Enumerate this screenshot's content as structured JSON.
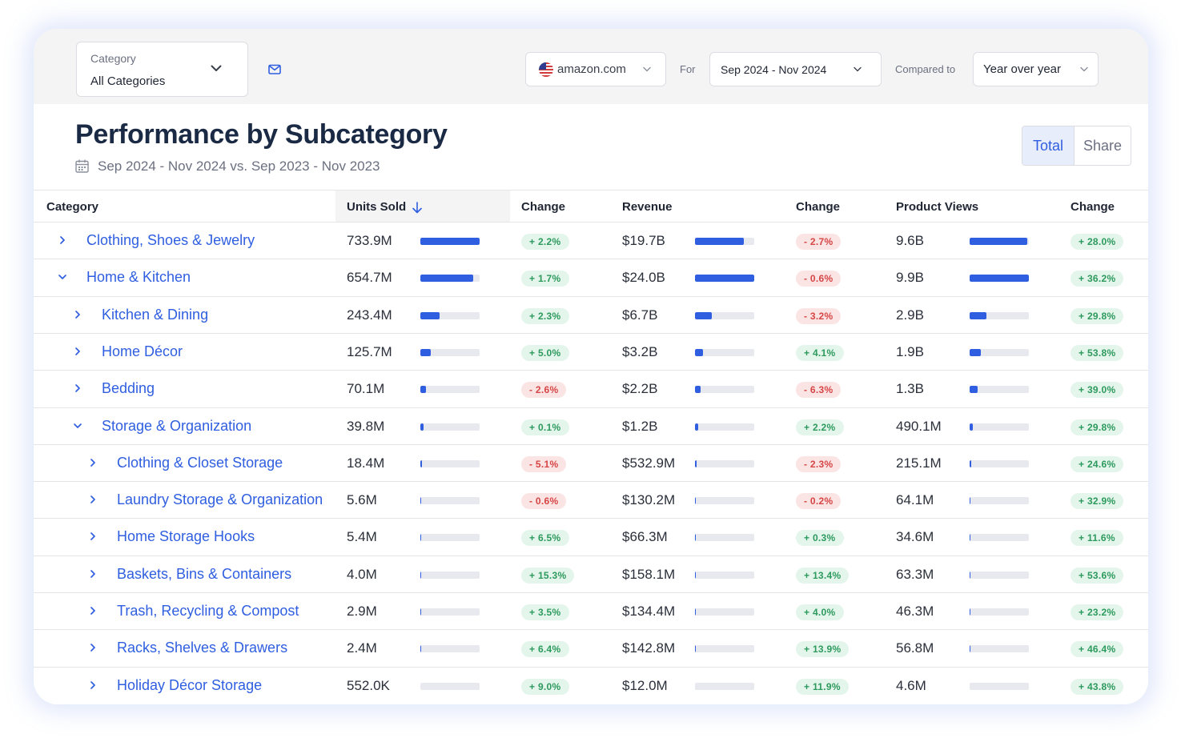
{
  "filters": {
    "category_label": "Category",
    "category_value": "All Categories",
    "marketplace": "amazon.com",
    "for_label": "For",
    "date_range": "Sep 2024 - Nov 2024",
    "compared_label": "Compared to",
    "comparison": "Year over year"
  },
  "header": {
    "title": "Performance by Subcategory",
    "subtitle": "Sep 2024 - Nov 2024 vs. Sep 2023 - Nov 2023",
    "toggle_total": "Total",
    "toggle_share": "Share"
  },
  "table": {
    "columns": {
      "category": "Category",
      "units_sold": "Units Sold",
      "units_change": "Change",
      "revenue": "Revenue",
      "revenue_change": "Change",
      "product_views": "Product Views",
      "views_change": "Change"
    },
    "rows": [
      {
        "level": 0,
        "expanded": false,
        "category": "Clothing, Shoes & Jewelry",
        "units": "733.9M",
        "units_share": 1.0,
        "units_change": "+ 2.2%",
        "revenue": "$19.7B",
        "revenue_share": 0.82,
        "revenue_change": "- 2.7%",
        "views": "9.6B",
        "views_share": 0.97,
        "views_change": "+ 28.0%"
      },
      {
        "level": 0,
        "expanded": true,
        "category": "Home & Kitchen",
        "units": "654.7M",
        "units_share": 0.89,
        "units_change": "+ 1.7%",
        "revenue": "$24.0B",
        "revenue_share": 1.0,
        "revenue_change": "- 0.6%",
        "views": "9.9B",
        "views_share": 1.0,
        "views_change": "+ 36.2%"
      },
      {
        "level": 1,
        "expanded": false,
        "category": "Kitchen & Dining",
        "units": "243.4M",
        "units_share": 0.33,
        "units_change": "+ 2.3%",
        "revenue": "$6.7B",
        "revenue_share": 0.28,
        "revenue_change": "- 3.2%",
        "views": "2.9B",
        "views_share": 0.29,
        "views_change": "+ 29.8%"
      },
      {
        "level": 1,
        "expanded": false,
        "category": "Home Décor",
        "units": "125.7M",
        "units_share": 0.17,
        "units_change": "+ 5.0%",
        "revenue": "$3.2B",
        "revenue_share": 0.13,
        "revenue_change": "+ 4.1%",
        "views": "1.9B",
        "views_share": 0.19,
        "views_change": "+ 53.8%"
      },
      {
        "level": 1,
        "expanded": false,
        "category": "Bedding",
        "units": "70.1M",
        "units_share": 0.095,
        "units_change": "- 2.6%",
        "revenue": "$2.2B",
        "revenue_share": 0.092,
        "revenue_change": "- 6.3%",
        "views": "1.3B",
        "views_share": 0.13,
        "views_change": "+ 39.0%"
      },
      {
        "level": 1,
        "expanded": true,
        "category": "Storage & Organization",
        "units": "39.8M",
        "units_share": 0.054,
        "units_change": "+ 0.1%",
        "revenue": "$1.2B",
        "revenue_share": 0.05,
        "revenue_change": "+ 2.2%",
        "views": "490.1M",
        "views_share": 0.05,
        "views_change": "+ 29.8%"
      },
      {
        "level": 2,
        "expanded": false,
        "category": "Clothing & Closet Storage",
        "units": "18.4M",
        "units_share": 0.025,
        "units_change": "- 5.1%",
        "revenue": "$532.9M",
        "revenue_share": 0.022,
        "revenue_change": "- 2.3%",
        "views": "215.1M",
        "views_share": 0.022,
        "views_change": "+ 24.6%"
      },
      {
        "level": 2,
        "expanded": false,
        "category": "Laundry Storage & Organization",
        "units": "5.6M",
        "units_share": 0.008,
        "units_change": "- 0.6%",
        "revenue": "$130.2M",
        "revenue_share": 0.005,
        "revenue_change": "- 0.2%",
        "views": "64.1M",
        "views_share": 0.006,
        "views_change": "+ 32.9%"
      },
      {
        "level": 2,
        "expanded": false,
        "category": "Home Storage Hooks",
        "units": "5.4M",
        "units_share": 0.007,
        "units_change": "+ 6.5%",
        "revenue": "$66.3M",
        "revenue_share": 0.003,
        "revenue_change": "+ 0.3%",
        "views": "34.6M",
        "views_share": 0.003,
        "views_change": "+ 11.6%"
      },
      {
        "level": 2,
        "expanded": false,
        "category": "Baskets, Bins & Containers",
        "units": "4.0M",
        "units_share": 0.005,
        "units_change": "+ 15.3%",
        "revenue": "$158.1M",
        "revenue_share": 0.007,
        "revenue_change": "+ 13.4%",
        "views": "63.3M",
        "views_share": 0.006,
        "views_change": "+ 53.6%"
      },
      {
        "level": 2,
        "expanded": false,
        "category": "Trash, Recycling & Compost",
        "units": "2.9M",
        "units_share": 0.004,
        "units_change": "+ 3.5%",
        "revenue": "$134.4M",
        "revenue_share": 0.006,
        "revenue_change": "+ 4.0%",
        "views": "46.3M",
        "views_share": 0.005,
        "views_change": "+ 23.2%"
      },
      {
        "level": 2,
        "expanded": false,
        "category": "Racks, Shelves & Drawers",
        "units": "2.4M",
        "units_share": 0.003,
        "units_change": "+ 6.4%",
        "revenue": "$142.8M",
        "revenue_share": 0.006,
        "revenue_change": "+ 13.9%",
        "views": "56.8M",
        "views_share": 0.006,
        "views_change": "+ 46.4%"
      },
      {
        "level": 2,
        "expanded": false,
        "category": "Holiday Décor Storage",
        "units": "552.0K",
        "units_share": 0.0,
        "units_change": "+ 9.0%",
        "revenue": "$12.0M",
        "revenue_share": 0.0,
        "revenue_change": "+ 11.9%",
        "views": "4.6M",
        "views_share": 0.0,
        "views_change": "+ 43.8%"
      }
    ]
  },
  "colors": {
    "accent": "#2f5ee0",
    "positive_bg": "#e4f5ec",
    "positive_text": "#2d9a5d",
    "negative_bg": "#fbe4e4",
    "negative_text": "#d64545"
  },
  "icons": {
    "category_dropdown": "chevron-down-icon",
    "mail": "mail-icon",
    "flag": "us-flag-icon",
    "calendar": "calendar-icon",
    "sort": "arrow-down-icon",
    "expand": "chevron-right-icon",
    "collapse": "chevron-down-icon"
  }
}
